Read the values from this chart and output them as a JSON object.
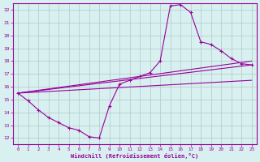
{
  "xlabel": "Windchill (Refroidissement éolien,°C)",
  "background_color": "#d8f0f0",
  "line_color": "#990099",
  "grid_color": "#b0c8c8",
  "xlim": [
    -0.5,
    23.5
  ],
  "ylim": [
    11.5,
    22.5
  ],
  "xticks": [
    0,
    1,
    2,
    3,
    4,
    5,
    6,
    7,
    8,
    9,
    10,
    11,
    12,
    13,
    14,
    15,
    16,
    17,
    18,
    19,
    20,
    21,
    22,
    23
  ],
  "yticks": [
    12,
    13,
    14,
    15,
    16,
    17,
    18,
    19,
    20,
    21,
    22
  ],
  "line1_x": [
    0,
    1,
    2,
    3,
    4,
    5,
    6,
    7,
    8,
    9,
    10,
    11,
    12,
    13,
    14,
    15,
    16,
    17,
    18,
    19,
    20,
    21,
    22,
    23
  ],
  "line1_y": [
    15.5,
    14.9,
    14.2,
    13.6,
    13.2,
    12.8,
    12.6,
    12.1,
    12.0,
    14.5,
    16.2,
    16.5,
    16.8,
    17.1,
    18.0,
    22.3,
    22.4,
    21.8,
    19.5,
    19.3,
    18.8,
    18.2,
    17.8,
    17.7
  ],
  "line2_x": [
    0,
    23
  ],
  "line2_y": [
    15.5,
    18.0
  ],
  "line3_x": [
    0,
    23
  ],
  "line3_y": [
    15.5,
    17.7
  ],
  "line4_x": [
    0,
    23
  ],
  "line4_y": [
    15.5,
    16.5
  ]
}
